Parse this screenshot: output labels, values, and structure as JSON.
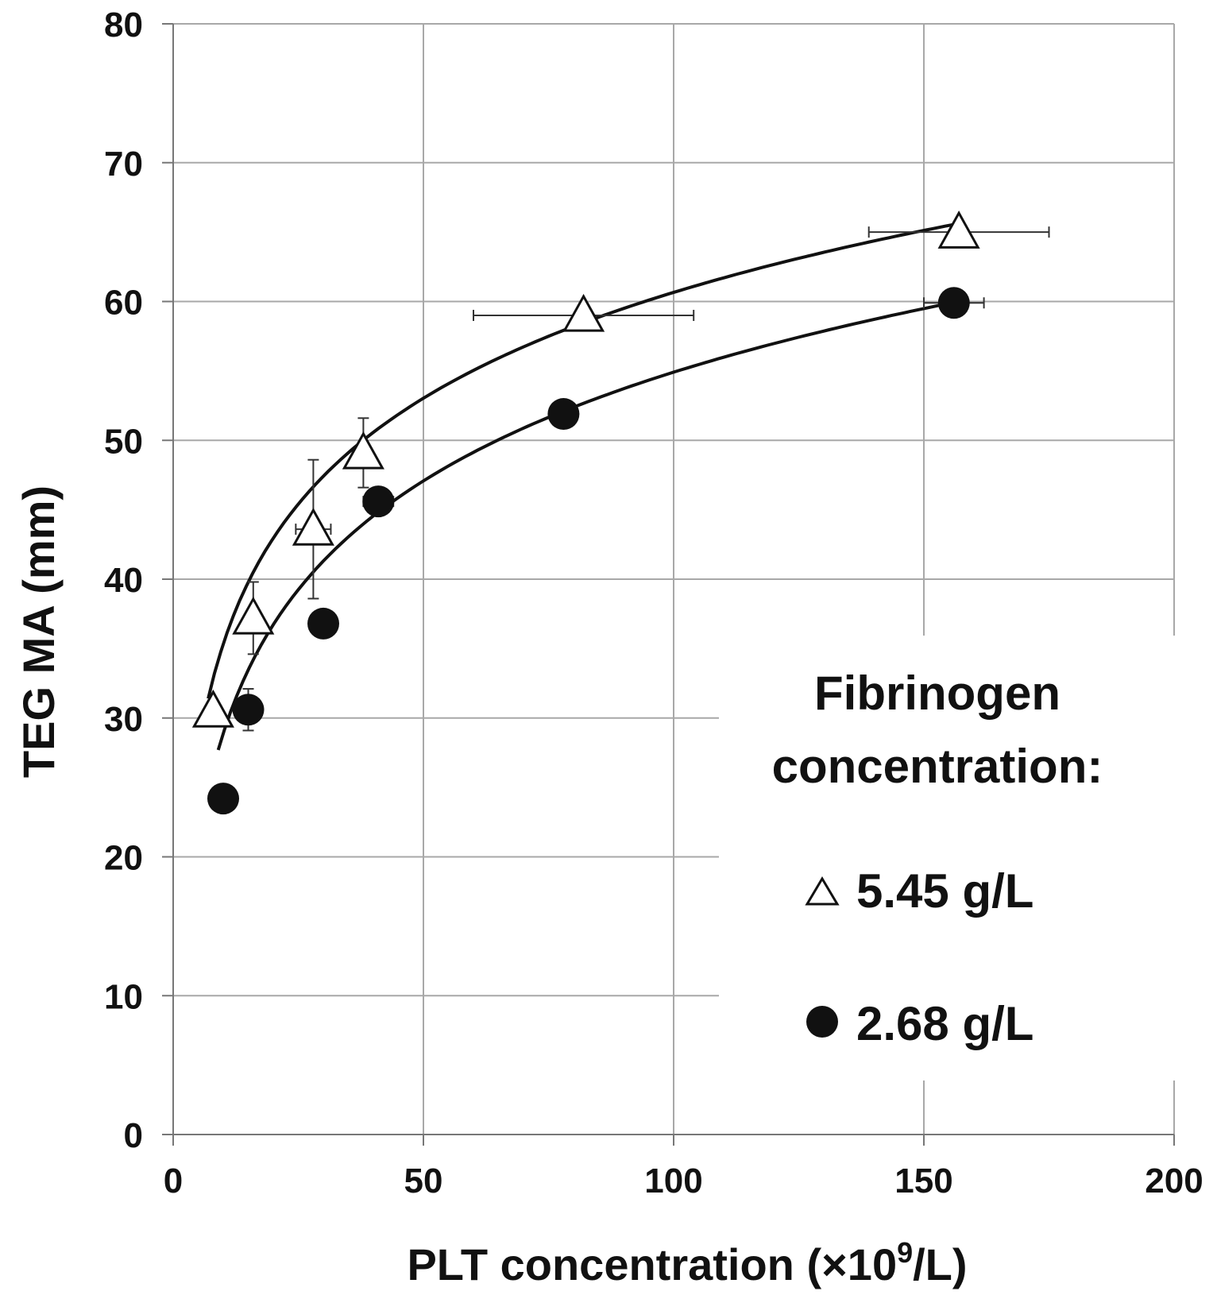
{
  "chart_data": {
    "type": "scatter",
    "xlabel": "PLT concentration (×10",
    "xlabel_sup": "9",
    "xlabel_end": "/L)",
    "ylabel": "TEG MA (mm)",
    "xlim": [
      0,
      200
    ],
    "ylim": [
      0,
      80
    ],
    "xticks": [
      "0",
      "50",
      "100",
      "150",
      "200"
    ],
    "yticks": [
      "0",
      "10",
      "20",
      "30",
      "40",
      "50",
      "60",
      "70",
      "80"
    ],
    "grid": true,
    "legend_placement": "lower-right",
    "legend_title_line1": "Fibrinogen",
    "legend_title_line2": "concentration:",
    "series": [
      {
        "name": "5.45 g/L",
        "marker": "open-triangle",
        "color": "#111111",
        "points": [
          {
            "x": 8,
            "y": 30.5,
            "xerr": 0,
            "yerr": 0
          },
          {
            "x": 16,
            "y": 37.2,
            "xerr": 0,
            "yerr": 2.6
          },
          {
            "x": 28,
            "y": 43.6,
            "xerr": 3.5,
            "yerr": 5.0
          },
          {
            "x": 38,
            "y": 49.1,
            "xerr": 0,
            "yerr": 2.5
          },
          {
            "x": 82,
            "y": 59.0,
            "xerr": 22,
            "yerr": 0
          },
          {
            "x": 157,
            "y": 65.0,
            "xerr": 18,
            "yerr": 0
          }
        ],
        "fit": {
          "type": "log",
          "a": 10.0,
          "b": 11.0
        }
      },
      {
        "name": "2.68 g/L",
        "marker": "filled-circle",
        "color": "#111111",
        "points": [
          {
            "x": 10,
            "y": 24.2,
            "xerr": 2,
            "yerr": 0
          },
          {
            "x": 15,
            "y": 30.6,
            "xerr": 0,
            "yerr": 1.5
          },
          {
            "x": 30,
            "y": 36.8,
            "xerr": 0,
            "yerr": 0
          },
          {
            "x": 41,
            "y": 45.6,
            "xerr": 3,
            "yerr": 0
          },
          {
            "x": 78,
            "y": 51.9,
            "xerr": 2,
            "yerr": 0
          },
          {
            "x": 156,
            "y": 59.9,
            "xerr": 6,
            "yerr": 0
          }
        ],
        "fit": {
          "type": "log",
          "a": 2.87,
          "b": 11.3
        }
      }
    ]
  }
}
